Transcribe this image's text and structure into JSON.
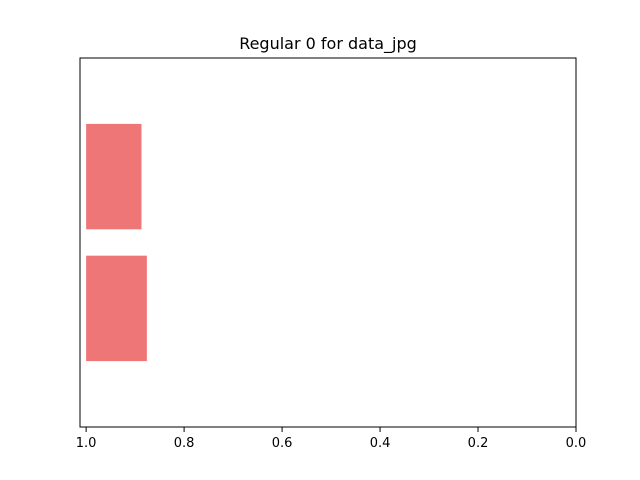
{
  "chart_data": {
    "type": "bar",
    "orientation": "horizontal",
    "title": "Regular 0 for data_jpg",
    "xlabel": "",
    "ylabel": "",
    "xlim": [
      1.0,
      0.0
    ],
    "x_inverted": true,
    "xticks": [
      1.0,
      0.8,
      0.6,
      0.4,
      0.2,
      0.0
    ],
    "xtick_labels": [
      "1.0",
      "0.8",
      "0.6",
      "0.4",
      "0.2",
      "0.0"
    ],
    "yticks_visible": false,
    "grid": false,
    "bar_color": "#ee7677",
    "bars": [
      {
        "position": 1,
        "value": 0.113
      },
      {
        "position": 0,
        "value": 0.124
      }
    ]
  }
}
